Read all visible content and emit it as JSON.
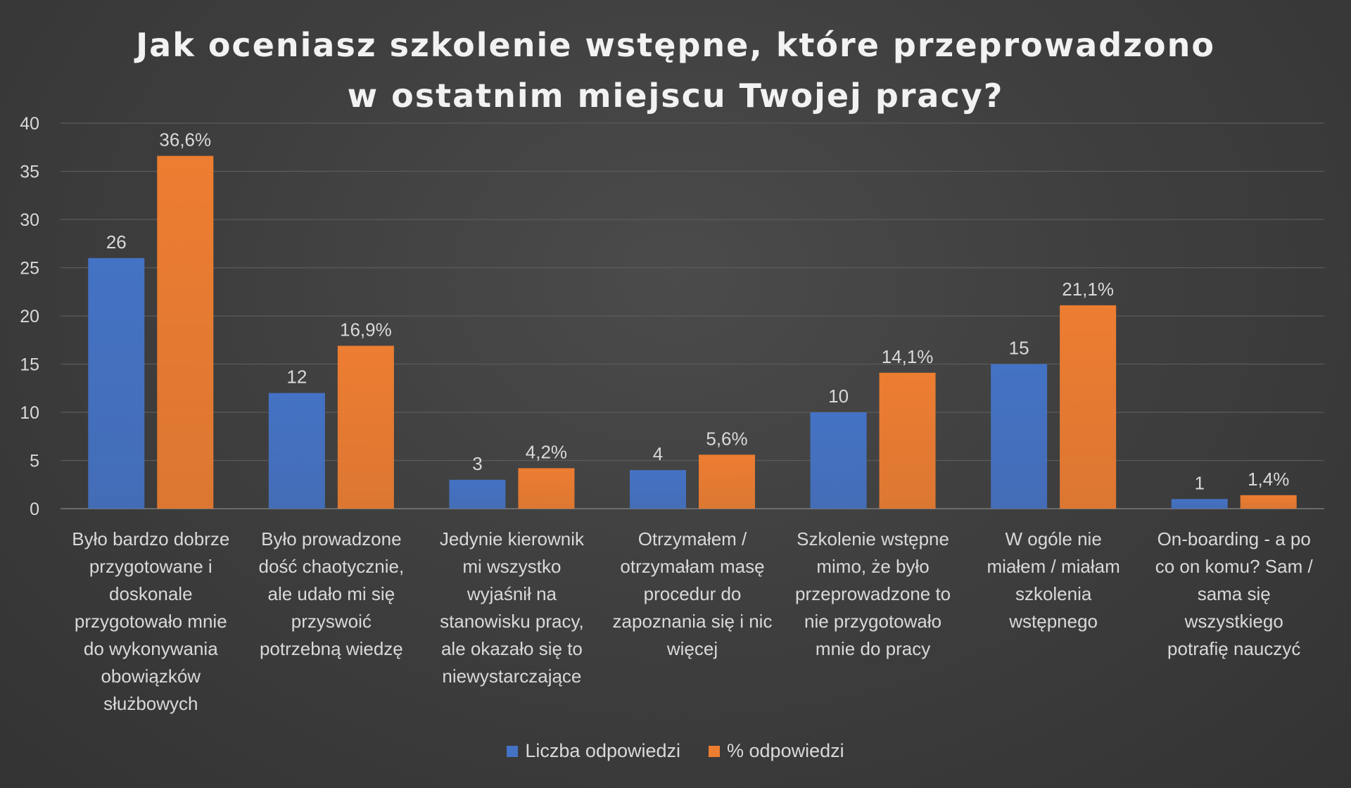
{
  "chart_data": {
    "type": "bar",
    "title_lines": [
      "Jak oceniasz szkolenie wstępne, które przeprowadzono",
      "w ostatnim miejscu Twojej pracy?"
    ],
    "categories": [
      [
        "Było bardzo dobrze",
        "przygotowane i",
        "doskonale",
        "przygotowało mnie",
        "do wykonywania",
        "obowiązków",
        "służbowych"
      ],
      [
        "Było prowadzone",
        "dość chaotycznie,",
        "ale udało mi się",
        "przyswoić",
        "potrzebną wiedzę"
      ],
      [
        "Jedynie kierownik",
        "mi wszystko",
        "wyjaśnił na",
        "stanowisku pracy,",
        "ale okazało się to",
        "niewystarczające"
      ],
      [
        "Otrzymałem /",
        "otrzymałam masę",
        "procedur do",
        "zapoznania się i nic",
        "więcej"
      ],
      [
        "Szkolenie wstępne",
        "mimo, że było",
        "przeprowadzone to",
        "nie przygotowało",
        "mnie do pracy"
      ],
      [
        "W ogóle nie",
        "miałem / miałam",
        "szkolenia",
        "wstępnego"
      ],
      [
        "On-boarding - a po",
        "co on komu? Sam /",
        "sama się",
        "wszystkiego",
        "potrafię nauczyć"
      ]
    ],
    "series": [
      {
        "name": "Liczba odpowiedzi",
        "values": [
          26,
          12,
          3,
          4,
          10,
          15,
          1
        ],
        "labels": [
          "26",
          "12",
          "3",
          "4",
          "10",
          "15",
          "1"
        ],
        "color": "#4472c4"
      },
      {
        "name": "% odpowiedzi",
        "values": [
          36.6,
          16.9,
          4.2,
          5.6,
          14.1,
          21.1,
          1.4
        ],
        "labels": [
          "36,6%",
          "16,9%",
          "4,2%",
          "5,6%",
          "14,1%",
          "21,1%",
          "1,4%"
        ],
        "color": "#ed7d31"
      }
    ],
    "ylim": [
      0,
      40
    ],
    "yticks": [
      "0",
      "5",
      "10",
      "15",
      "20",
      "25",
      "30",
      "35",
      "40"
    ],
    "grid": true,
    "legend_position": "bottom"
  }
}
